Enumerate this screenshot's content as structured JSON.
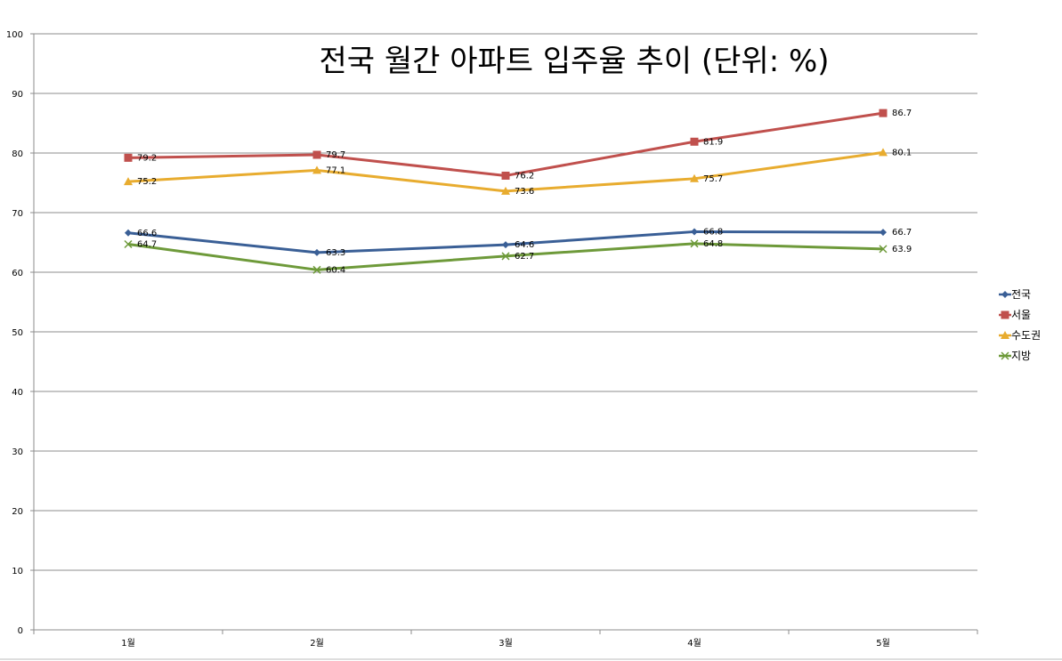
{
  "chart_data": {
    "type": "line",
    "title": "전국 월간 아파트 입주율 추이 (단위: %)",
    "categories": [
      "1월",
      "2월",
      "3월",
      "4월",
      "5월"
    ],
    "ylim": [
      0,
      100
    ],
    "yticks": [
      0,
      10,
      20,
      30,
      40,
      50,
      60,
      70,
      80,
      90,
      100
    ],
    "grid": true,
    "legend_position": "right",
    "series": [
      {
        "name": "전국",
        "values": [
          66.6,
          63.3,
          64.6,
          66.8,
          66.7
        ],
        "color": "#3A5F96",
        "marker": "diamond"
      },
      {
        "name": "서울",
        "values": [
          79.2,
          79.7,
          76.2,
          81.9,
          86.7
        ],
        "color": "#C0504D",
        "marker": "square"
      },
      {
        "name": "수도권",
        "values": [
          75.2,
          77.1,
          73.6,
          75.7,
          80.1
        ],
        "color": "#E8AC2F",
        "marker": "triangle"
      },
      {
        "name": "지방",
        "values": [
          64.7,
          60.4,
          62.7,
          64.8,
          63.9
        ],
        "color": "#6E9A3A",
        "marker": "x"
      }
    ]
  }
}
